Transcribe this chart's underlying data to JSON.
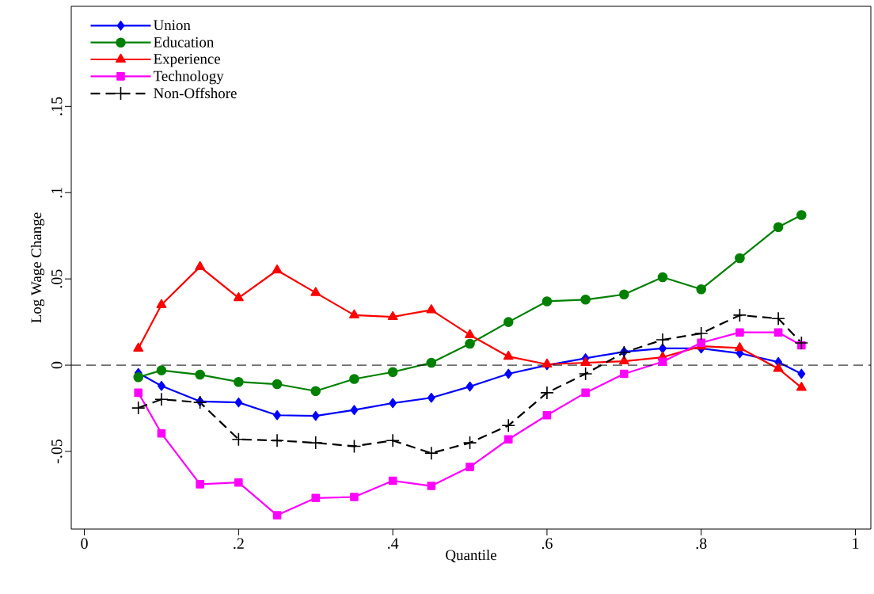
{
  "chart_data": {
    "type": "line",
    "xlabel": "Quantile",
    "ylabel": "Log Wage Change",
    "x": [
      0.07,
      0.1,
      0.15,
      0.2,
      0.25,
      0.3,
      0.35,
      0.4,
      0.45,
      0.5,
      0.55,
      0.6,
      0.65,
      0.7,
      0.75,
      0.8,
      0.85,
      0.9,
      0.93
    ],
    "series": [
      {
        "name": "Union",
        "color": "#0000ff",
        "marker": "diamond",
        "line_style": "solid",
        "values": [
          -0.0046,
          -0.012,
          -0.021,
          -0.0216,
          -0.029,
          -0.0294,
          -0.026,
          -0.022,
          -0.0189,
          -0.0124,
          -0.005,
          0.0,
          0.004,
          0.0078,
          0.0097,
          0.0097,
          0.0069,
          0.0018,
          -0.005
        ]
      },
      {
        "name": "Education",
        "color": "#008000",
        "marker": "circle",
        "line_style": "solid",
        "values": [
          -0.007,
          -0.003,
          -0.0055,
          -0.0097,
          -0.011,
          -0.015,
          -0.008,
          -0.004,
          0.0014,
          0.0124,
          0.025,
          0.037,
          0.038,
          0.041,
          0.051,
          0.044,
          0.062,
          0.08,
          0.087
        ]
      },
      {
        "name": "Experience",
        "color": "#ff0000",
        "marker": "triangle",
        "line_style": "solid",
        "values": [
          0.0097,
          0.035,
          0.057,
          0.039,
          0.055,
          0.042,
          0.029,
          0.028,
          0.032,
          0.0175,
          0.005,
          0.0005,
          0.0014,
          0.0023,
          0.0046,
          0.011,
          0.01,
          -0.002,
          -0.013
        ]
      },
      {
        "name": "Technology",
        "color": "#ff00ff",
        "marker": "square",
        "line_style": "solid",
        "values": [
          -0.016,
          -0.0396,
          -0.069,
          -0.068,
          -0.087,
          -0.077,
          -0.0764,
          -0.067,
          -0.07,
          -0.059,
          -0.043,
          -0.029,
          -0.016,
          -0.005,
          0.002,
          0.013,
          0.019,
          0.019,
          0.0115
        ]
      },
      {
        "name": "Non-Offshore",
        "color": "#000000",
        "marker": "cross",
        "line_style": "dashed",
        "values": [
          -0.0248,
          -0.0198,
          -0.0216,
          -0.043,
          -0.0437,
          -0.045,
          -0.047,
          -0.0437,
          -0.051,
          -0.045,
          -0.035,
          -0.016,
          -0.005,
          0.0074,
          0.0147,
          0.0184,
          0.029,
          0.027,
          0.0129
        ]
      }
    ],
    "ref_lines": [
      {
        "axis": "y",
        "value": 0,
        "color": "#000000",
        "line_style": "dashed"
      }
    ],
    "xlim": [
      -0.017,
      1.02
    ],
    "ylim": [
      -0.095,
      0.208
    ],
    "xticks": [
      0,
      {
        "value": 0.2,
        "label": ".2"
      },
      {
        "value": 0.4,
        "label": ".4"
      },
      {
        "value": 0.6,
        "label": ".6"
      },
      {
        "value": 0.8,
        "label": ".8"
      },
      1
    ],
    "yticks": [
      {
        "value": -0.05,
        "label": "-.05"
      },
      0,
      {
        "value": 0.05,
        "label": ".05"
      },
      {
        "value": 0.1,
        "label": ".1"
      },
      {
        "value": 0.15,
        "label": ".15"
      }
    ],
    "grid": false,
    "legend": "top left"
  }
}
